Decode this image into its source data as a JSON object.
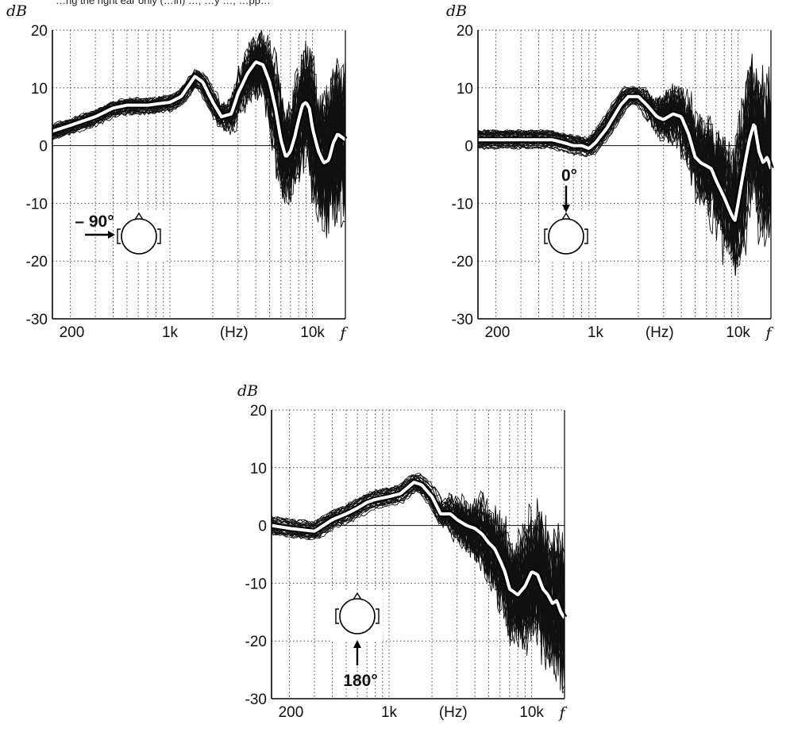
{
  "caption_line": "…ng the right ear only (…in) …, …y …, …pp…",
  "chart_data": [
    {
      "type": "line",
      "panel": "minus-90",
      "angle_label": "– 90°",
      "ylabel": "dB",
      "xlabel": "(Hz)",
      "x_symbol": "f",
      "x_scale": "log",
      "xlim": [
        150,
        17000
      ],
      "ylim": [
        -30,
        20
      ],
      "y_ticks": [
        20,
        10,
        0,
        -10,
        -20,
        -30
      ],
      "x_tick_labels": [
        {
          "x": 200,
          "label": "200"
        },
        {
          "x": 1000,
          "label": "1k"
        },
        {
          "x": 10000,
          "label": "10k"
        }
      ],
      "grid": true,
      "mean_curve": {
        "x": [
          150,
          200,
          300,
          400,
          500,
          600,
          700,
          800,
          1000,
          1200,
          1500,
          1700,
          2000,
          2300,
          2700,
          3000,
          3500,
          4000,
          4500,
          5000,
          5500,
          6000,
          6500,
          7000,
          7500,
          8000,
          8500,
          9000,
          9500,
          10000,
          11000,
          12000,
          13000,
          14000,
          15000,
          16000,
          17000
        ],
        "y": [
          2.5,
          3.5,
          5,
          6.5,
          7,
          7,
          7,
          7.2,
          7.5,
          8.5,
          12,
          11,
          7.5,
          5,
          5.5,
          9,
          12.5,
          14.5,
          14,
          11,
          6.5,
          1,
          -2,
          -1,
          1.5,
          4.5,
          7,
          7.5,
          6.5,
          3,
          -1,
          -3,
          -2.5,
          0.5,
          2,
          1.5,
          1
        ],
        "color": "#ffffff"
      }
    },
    {
      "type": "line",
      "panel": "zero",
      "angle_label": "0°",
      "ylabel": "dB",
      "xlabel": "(Hz)",
      "x_symbol": "f",
      "x_scale": "log",
      "xlim": [
        150,
        17000
      ],
      "ylim": [
        -30,
        20
      ],
      "y_ticks": [
        20,
        10,
        0,
        -10,
        -20,
        -30
      ],
      "x_tick_labels": [
        {
          "x": 200,
          "label": "200"
        },
        {
          "x": 1000,
          "label": "1k"
        },
        {
          "x": 10000,
          "label": "10k"
        }
      ],
      "grid": true,
      "mean_curve": {
        "x": [
          150,
          200,
          300,
          500,
          600,
          700,
          800,
          900,
          1000,
          1200,
          1500,
          1700,
          2000,
          2300,
          2700,
          3000,
          3500,
          4000,
          4500,
          5000,
          5500,
          6000,
          6500,
          7000,
          8000,
          9000,
          9500,
          10000,
          11000,
          12000,
          13000,
          14000,
          15000,
          16000,
          17000
        ],
        "y": [
          1,
          1,
          1,
          1,
          0.5,
          0,
          0,
          -0.5,
          0.5,
          3,
          7,
          8.5,
          8.5,
          7,
          5,
          4.5,
          5.5,
          5,
          2,
          -2,
          -3,
          -3.5,
          -4,
          -6,
          -9,
          -12,
          -13,
          -10,
          -4,
          1,
          4,
          -1,
          -3,
          -2,
          -4
        ],
        "color": "#ffffff"
      }
    },
    {
      "type": "line",
      "panel": "180",
      "angle_label": "180°",
      "ylabel": "dB",
      "xlabel": "(Hz)",
      "x_symbol": "f",
      "x_scale": "log",
      "xlim": [
        150,
        17000
      ],
      "ylim": [
        -30,
        20
      ],
      "y_ticks": [
        20,
        10,
        0,
        -10,
        -20,
        -30
      ],
      "x_tick_labels": [
        {
          "x": 200,
          "label": "200"
        },
        {
          "x": 1000,
          "label": "1k"
        },
        {
          "x": 10000,
          "label": "10k"
        }
      ],
      "grid": true,
      "mean_curve": {
        "x": [
          150,
          200,
          300,
          400,
          500,
          600,
          700,
          800,
          1000,
          1200,
          1500,
          1700,
          2000,
          2300,
          2700,
          3000,
          3500,
          4000,
          4500,
          5000,
          5500,
          6000,
          6500,
          7000,
          8000,
          9000,
          10000,
          11000,
          12000,
          13000,
          14000,
          15000,
          16000,
          17000
        ],
        "y": [
          0,
          -0.5,
          -1,
          1,
          2,
          3,
          4,
          4.5,
          5,
          5.5,
          7.5,
          7,
          5,
          2,
          2,
          1,
          0,
          -0.5,
          -1.5,
          -3,
          -4,
          -6,
          -8,
          -11,
          -12,
          -10.5,
          -8,
          -8.5,
          -11,
          -12,
          -13.5,
          -13,
          -15,
          -16
        ],
        "color": "#ffffff"
      }
    }
  ]
}
